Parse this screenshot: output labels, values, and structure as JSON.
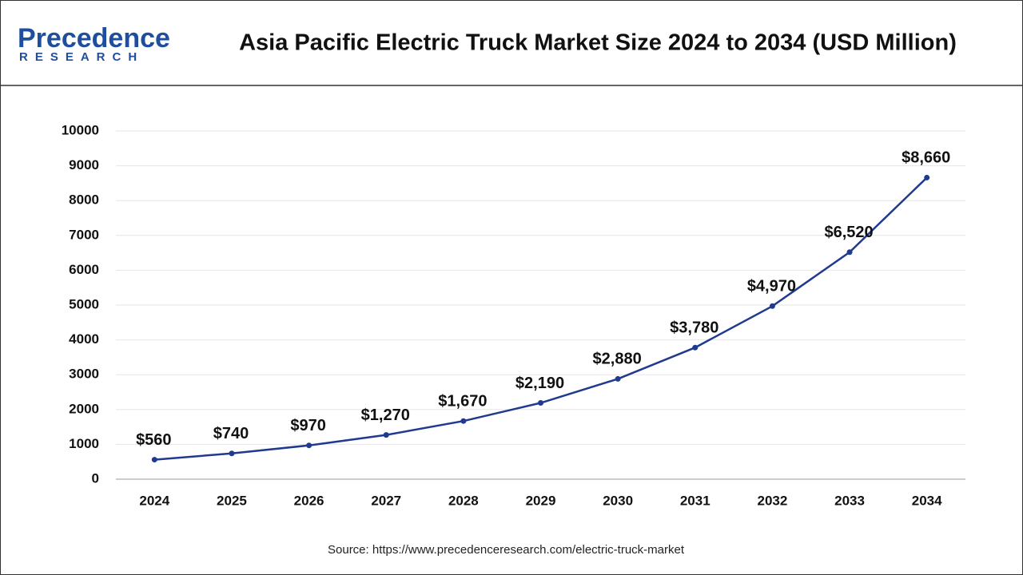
{
  "logo": {
    "name": "Precedence",
    "tagline": "RESEARCH"
  },
  "chart_data": {
    "type": "line",
    "title": "Asia Pacific Electric Truck Market Size 2024 to 2034 (USD Million)",
    "categories": [
      "2024",
      "2025",
      "2026",
      "2027",
      "2028",
      "2029",
      "2030",
      "2031",
      "2032",
      "2033",
      "2034"
    ],
    "series": [
      {
        "name": "Market Size",
        "color": "#1f3a8f",
        "values": [
          560,
          740,
          970,
          1270,
          1670,
          2190,
          2880,
          3780,
          4970,
          6520,
          8660
        ],
        "value_labels": [
          "$560",
          "$740",
          "$970",
          "$1,270",
          "$1,670",
          "$2,190",
          "$2,880",
          "$3,780",
          "$4,970",
          "$6,520",
          "$8,660"
        ]
      }
    ],
    "ylim": [
      0,
      10000
    ],
    "yticks": [
      0,
      1000,
      2000,
      3000,
      4000,
      5000,
      6000,
      7000,
      8000,
      9000,
      10000
    ],
    "grid": true,
    "source": "Source: https://www.precedenceresearch.com/electric-truck-market"
  }
}
